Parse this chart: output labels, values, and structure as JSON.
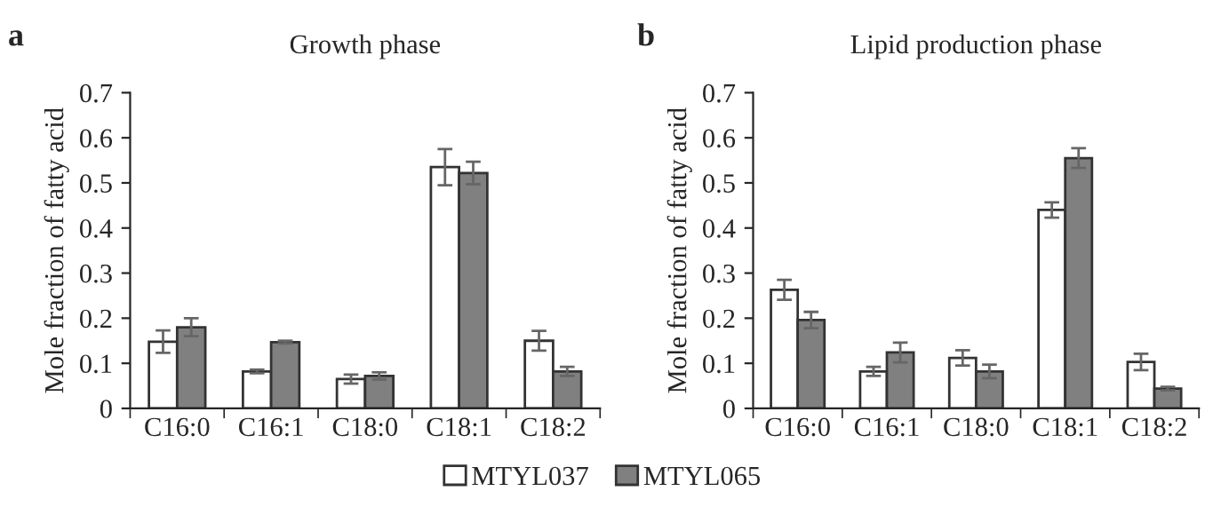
{
  "chart_data": [
    {
      "type": "bar",
      "title": "Growth phase",
      "annotations": [
        "a"
      ],
      "ylabel": "Mole fraction of fatty acid",
      "categories": [
        "C16:0",
        "C16:1",
        "C18:0",
        "C18:1",
        "C18:2"
      ],
      "series": [
        {
          "name": "MTYL037",
          "color": "#ffffff",
          "values": [
            0.148,
            0.082,
            0.065,
            0.535,
            0.15
          ],
          "errors": [
            0.025,
            0.004,
            0.01,
            0.04,
            0.022
          ]
        },
        {
          "name": "MTYL065",
          "color": "#808080",
          "values": [
            0.18,
            0.147,
            0.072,
            0.522,
            0.082
          ],
          "errors": [
            0.02,
            0.003,
            0.008,
            0.025,
            0.01
          ]
        }
      ],
      "ylim": [
        0,
        0.7
      ],
      "yticks": [
        {
          "value": 0,
          "label": "0"
        },
        0.1,
        0.2,
        0.3,
        0.4,
        0.5,
        0.6,
        0.7
      ],
      "grid": false,
      "legend": "bottom"
    },
    {
      "type": "bar",
      "title": "Lipid production phase",
      "annotations": [
        "b"
      ],
      "ylabel": "Mole fraction of fatty acid",
      "categories": [
        "C16:0",
        "C16:1",
        "C18:0",
        "C18:1",
        "C18:2"
      ],
      "series": [
        {
          "color": "#ffffff",
          "values": [
            0.263,
            0.082,
            0.112,
            0.44,
            0.103
          ],
          "errors": [
            0.022,
            0.01,
            0.017,
            0.017,
            0.018
          ]
        },
        {
          "color": "#808080",
          "values": [
            0.196,
            0.124,
            0.082,
            0.555,
            0.044
          ],
          "errors": [
            0.018,
            0.022,
            0.015,
            0.022,
            0.004
          ]
        }
      ],
      "ylim": [
        0,
        0.7
      ],
      "yticks": [
        {
          "value": 0,
          "label": "0"
        },
        0.1,
        0.2,
        0.3,
        0.4,
        0.5,
        0.6,
        0.7
      ],
      "grid": false
    }
  ]
}
